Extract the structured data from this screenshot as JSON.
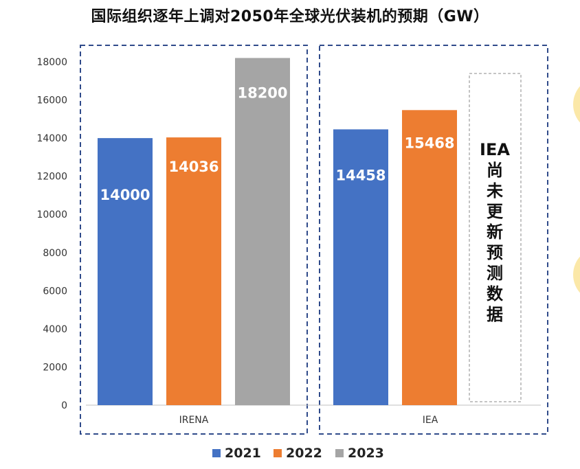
{
  "chart_data": {
    "type": "bar",
    "title": "国际组织逐年上调对2050年全球光伏装机的预期（GW）",
    "categories": [
      "IRENA",
      "IEA"
    ],
    "series": [
      {
        "name": "2021",
        "color": "#4472C4",
        "values": [
          14000,
          14458
        ]
      },
      {
        "name": "2022",
        "color": "#ED7D31",
        "values": [
          14036,
          15468
        ]
      },
      {
        "name": "2023",
        "color": "#A5A5A5",
        "values": [
          18200,
          null
        ]
      }
    ],
    "data_labels": {
      "IRENA": [
        "14000",
        "14036",
        "18200"
      ],
      "IEA": [
        "14458",
        "15468"
      ]
    },
    "y_ticks": [
      "0",
      "2000",
      "4000",
      "6000",
      "8000",
      "10000",
      "12000",
      "14000",
      "16000",
      "18000"
    ],
    "ylim": [
      0,
      18000
    ],
    "grid": false,
    "legend_position": "bottom",
    "annotation": "IEA尚未更新预测数据",
    "annotation_lines": [
      "IEA",
      "尚",
      "未",
      "更",
      "新",
      "预",
      "测",
      "数",
      "据"
    ],
    "group_box_color": "#2F4A8A"
  }
}
